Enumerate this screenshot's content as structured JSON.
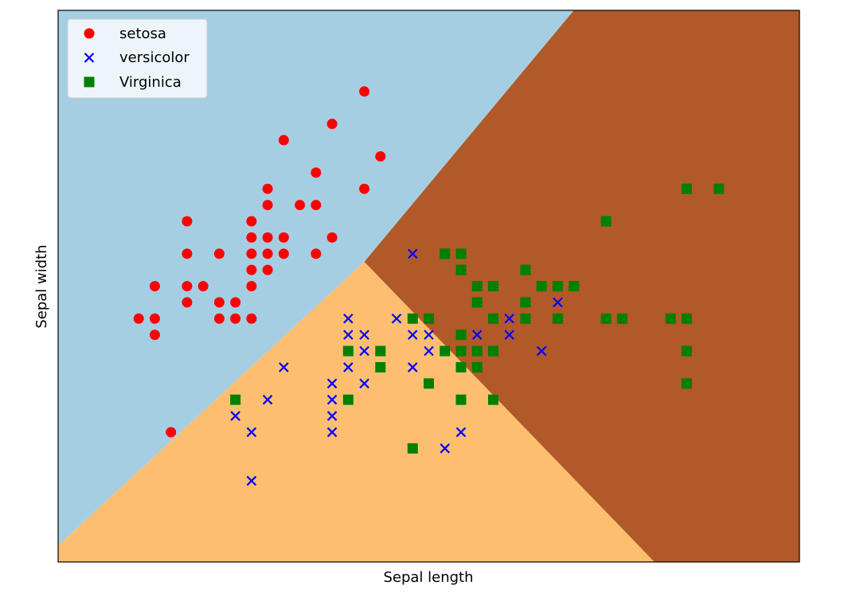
{
  "chart_data": {
    "type": "scatter",
    "title": "",
    "xlabel": "Sepal length",
    "ylabel": "Sepal width",
    "xlim": [
      3.8,
      8.4
    ],
    "ylim": [
      1.5,
      4.9
    ],
    "show_ticks": false,
    "grid": false,
    "legend_position": "top-left",
    "decision_regions": [
      {
        "class": "setosa",
        "color": "#a6cee3"
      },
      {
        "class": "versicolor",
        "color": "#fdbf6f"
      },
      {
        "class": "Virginica",
        "color": "#b15928"
      }
    ],
    "series": [
      {
        "name": "setosa",
        "marker": "circle",
        "color": "#ff0000",
        "points": [
          [
            4.3,
            3.0
          ],
          [
            4.4,
            2.9
          ],
          [
            4.4,
            3.2
          ],
          [
            4.4,
            3.0
          ],
          [
            4.5,
            2.3
          ],
          [
            4.6,
            3.1
          ],
          [
            4.6,
            3.4
          ],
          [
            4.6,
            3.6
          ],
          [
            4.6,
            3.2
          ],
          [
            4.7,
            3.2
          ],
          [
            4.8,
            3.4
          ],
          [
            4.8,
            3.0
          ],
          [
            4.8,
            3.1
          ],
          [
            4.9,
            3.0
          ],
          [
            4.9,
            3.1
          ],
          [
            5.0,
            3.6
          ],
          [
            5.0,
            3.4
          ],
          [
            5.0,
            3.0
          ],
          [
            5.0,
            3.5
          ],
          [
            5.0,
            3.2
          ],
          [
            5.0,
            3.3
          ],
          [
            5.1,
            3.5
          ],
          [
            5.1,
            3.8
          ],
          [
            5.1,
            3.7
          ],
          [
            5.1,
            3.3
          ],
          [
            5.1,
            3.4
          ],
          [
            5.2,
            3.5
          ],
          [
            5.2,
            3.4
          ],
          [
            5.2,
            4.1
          ],
          [
            5.3,
            3.7
          ],
          [
            5.4,
            3.9
          ],
          [
            5.4,
            3.7
          ],
          [
            5.4,
            3.4
          ],
          [
            5.5,
            4.2
          ],
          [
            5.5,
            3.5
          ],
          [
            5.7,
            4.4
          ],
          [
            5.7,
            3.8
          ],
          [
            5.8,
            4.0
          ]
        ]
      },
      {
        "name": "versicolor",
        "marker": "x",
        "color": "#0000ff",
        "points": [
          [
            4.9,
            2.4
          ],
          [
            5.0,
            2.3
          ],
          [
            5.0,
            2.0
          ],
          [
            5.1,
            2.5
          ],
          [
            5.2,
            2.7
          ],
          [
            5.5,
            2.3
          ],
          [
            5.5,
            2.4
          ],
          [
            5.5,
            2.5
          ],
          [
            5.5,
            2.6
          ],
          [
            5.6,
            2.9
          ],
          [
            5.6,
            3.0
          ],
          [
            5.6,
            2.7
          ],
          [
            5.7,
            2.8
          ],
          [
            5.7,
            2.9
          ],
          [
            5.7,
            2.6
          ],
          [
            5.8,
            2.7
          ],
          [
            5.9,
            3.0
          ],
          [
            6.0,
            2.9
          ],
          [
            6.0,
            2.7
          ],
          [
            6.0,
            3.4
          ],
          [
            6.1,
            2.8
          ],
          [
            6.1,
            2.9
          ],
          [
            6.2,
            2.2
          ],
          [
            6.3,
            2.3
          ],
          [
            6.3,
            3.3
          ],
          [
            6.4,
            2.9
          ],
          [
            6.6,
            2.9
          ],
          [
            6.6,
            3.0
          ],
          [
            6.8,
            2.8
          ],
          [
            6.9,
            3.1
          ],
          [
            7.0,
            3.2
          ]
        ]
      },
      {
        "name": "Virginica",
        "marker": "square",
        "color": "#008000",
        "points": [
          [
            4.9,
            2.5
          ],
          [
            5.6,
            2.8
          ],
          [
            5.6,
            2.5
          ],
          [
            5.8,
            2.7
          ],
          [
            5.8,
            2.8
          ],
          [
            6.0,
            2.2
          ],
          [
            6.0,
            3.0
          ],
          [
            6.1,
            2.6
          ],
          [
            6.1,
            3.0
          ],
          [
            6.2,
            2.8
          ],
          [
            6.2,
            3.4
          ],
          [
            6.3,
            3.3
          ],
          [
            6.3,
            2.9
          ],
          [
            6.3,
            2.8
          ],
          [
            6.3,
            2.7
          ],
          [
            6.3,
            2.5
          ],
          [
            6.3,
            3.4
          ],
          [
            6.4,
            3.2
          ],
          [
            6.4,
            3.1
          ],
          [
            6.4,
            2.8
          ],
          [
            6.4,
            2.7
          ],
          [
            6.5,
            3.2
          ],
          [
            6.5,
            3.0
          ],
          [
            6.5,
            2.8
          ],
          [
            6.7,
            3.3
          ],
          [
            6.7,
            3.1
          ],
          [
            6.7,
            3.0
          ],
          [
            6.8,
            3.2
          ],
          [
            6.9,
            3.0
          ],
          [
            6.9,
            3.2
          ],
          [
            7.0,
            3.2
          ],
          [
            7.2,
            3.0
          ],
          [
            7.2,
            3.6
          ],
          [
            7.3,
            3.0
          ],
          [
            7.6,
            3.0
          ],
          [
            7.7,
            3.8
          ],
          [
            7.7,
            3.0
          ],
          [
            7.7,
            2.8
          ],
          [
            7.7,
            2.6
          ],
          [
            7.9,
            3.8
          ],
          [
            6.5,
            2.5
          ]
        ]
      }
    ]
  }
}
